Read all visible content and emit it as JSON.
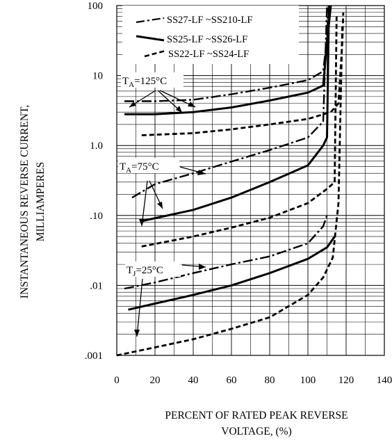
{
  "chart_data": {
    "type": "line",
    "xlabel": [
      "PERCENT OF RATED PEAK REVERSE",
      "VOLTAGE, (%)"
    ],
    "ylabel": [
      "INSTANTANEOUS REVERSE CURRENT,",
      "MILLIAMPERES"
    ],
    "xlim": [
      0,
      140
    ],
    "ylim": [
      0.001,
      100
    ],
    "yscale": "log",
    "grid": true,
    "legend_position": "top-right",
    "x_tick_labels": [
      "0",
      "20",
      "40",
      "60",
      "80",
      "100",
      "120",
      "140"
    ],
    "y_tick_labels": [
      ".001",
      ".01",
      ".10",
      "1.0",
      "10",
      "100"
    ],
    "legend": [
      {
        "label": "SS27-LF ~SS210-LF",
        "style": "dashdot"
      },
      {
        "label": "SS25-LF ~SS26-LF",
        "style": "solid"
      },
      {
        "label": "SS22-LF ~SS24-LF",
        "style": "dashed"
      }
    ],
    "annotations": [
      {
        "sym": "T",
        "sub": "A",
        "val": "=125°C"
      },
      {
        "sym": "T",
        "sub": "A",
        "val": "=75°C"
      },
      {
        "sym": "T",
        "sub": "J",
        "val": "=25°C"
      }
    ],
    "series": [
      {
        "name": "SS27-LF ~SS210-LF",
        "style": "dashdot",
        "group": 0,
        "x": [
          4,
          20,
          40,
          60,
          80,
          100,
          108,
          110,
          111
        ],
        "y": [
          4.3,
          4.3,
          4.5,
          5.4,
          6.7,
          8.6,
          11.5,
          35,
          100
        ]
      },
      {
        "name": "SS25-LF ~SS26-LF",
        "style": "solid",
        "group": 0,
        "x": [
          4,
          20,
          40,
          60,
          80,
          100,
          108,
          110,
          112
        ],
        "y": [
          2.8,
          2.8,
          3,
          3.5,
          4.4,
          5.7,
          7.2,
          30,
          100
        ]
      },
      {
        "name": "SS22-LF ~SS24-LF",
        "style": "dashed",
        "group": 0,
        "x": [
          13,
          40,
          60,
          80,
          100,
          112,
          116,
          118,
          118.5
        ],
        "y": [
          1.4,
          1.5,
          1.7,
          2,
          2.4,
          3,
          4,
          30,
          80
        ]
      },
      {
        "name": "SS27-LF ~SS210-LF",
        "style": "dashdot",
        "group": 1,
        "x": [
          8,
          20,
          40,
          60,
          80,
          100,
          108,
          110
        ],
        "y": [
          0.18,
          0.28,
          0.4,
          0.59,
          0.86,
          1.3,
          2.2,
          100
        ]
      },
      {
        "name": "SS25-LF ~SS26-LF",
        "style": "solid",
        "group": 1,
        "x": [
          13,
          40,
          60,
          80,
          100,
          108,
          110,
          111
        ],
        "y": [
          0.083,
          0.12,
          0.18,
          0.3,
          0.52,
          1,
          1.3,
          100
        ]
      },
      {
        "name": "SS22-LF ~SS24-LF",
        "style": "dashed",
        "group": 1,
        "x": [
          13,
          40,
          60,
          80,
          100,
          110,
          114,
          115
        ],
        "y": [
          0.036,
          0.05,
          0.067,
          0.093,
          0.15,
          0.24,
          0.3,
          70
        ]
      },
      {
        "name": "SS27-LF ~SS210-LF",
        "style": "dashdot",
        "group": 2,
        "x": [
          4,
          20,
          40,
          60,
          80,
          100,
          108,
          110
        ],
        "y": [
          0.009,
          0.011,
          0.015,
          0.02,
          0.026,
          0.04,
          0.07,
          0.1
        ]
      },
      {
        "name": "SS25-LF ~SS26-LF",
        "style": "solid",
        "group": 2,
        "x": [
          6,
          20,
          40,
          60,
          80,
          100,
          110,
          114
        ],
        "y": [
          0.0045,
          0.0055,
          0.0073,
          0.01,
          0.015,
          0.024,
          0.035,
          0.05
        ]
      },
      {
        "name": "SS22-LF ~SS24-LF",
        "style": "dashed",
        "group": 2,
        "x": [
          0,
          20,
          40,
          60,
          80,
          100,
          108,
          113,
          116,
          118
        ],
        "y": [
          0.001,
          0.0013,
          0.0017,
          0.0024,
          0.0035,
          0.0073,
          0.013,
          0.025,
          0.15,
          50
        ]
      }
    ]
  }
}
